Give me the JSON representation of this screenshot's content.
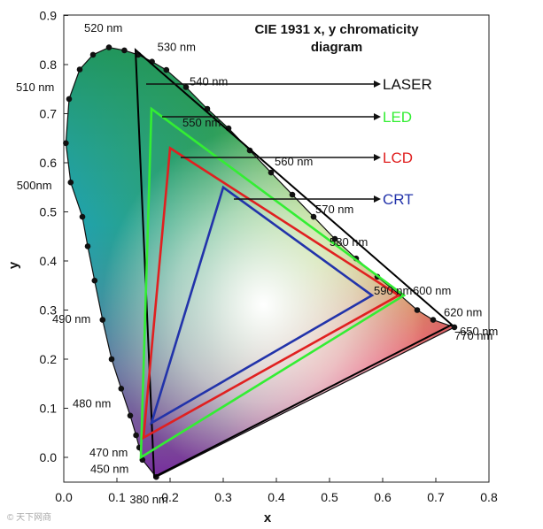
{
  "chart_data": {
    "type": "scatter",
    "title_line1": "CIE 1931 x, y chromaticity",
    "title_line2": "diagram",
    "xlabel": "x",
    "ylabel": "y",
    "xlim": [
      0.0,
      0.8
    ],
    "ylim": [
      -0.05,
      0.9
    ],
    "x_ticks": [
      "0.0",
      "0.1",
      "0.2",
      "0.3",
      "0.4",
      "0.5",
      "0.6",
      "0.7",
      "0.8"
    ],
    "y_ticks": [
      "0.0",
      "0.1",
      "0.2",
      "0.3",
      "0.4",
      "0.5",
      "0.6",
      "0.7",
      "0.8",
      "0.9"
    ],
    "locus": [
      [
        0.174,
        -0.04
      ],
      [
        0.148,
        -0.005
      ],
      [
        0.142,
        0.02
      ],
      [
        0.136,
        0.045
      ],
      [
        0.125,
        0.085
      ],
      [
        0.108,
        0.14
      ],
      [
        0.09,
        0.2
      ],
      [
        0.073,
        0.28
      ],
      [
        0.058,
        0.36
      ],
      [
        0.045,
        0.43
      ],
      [
        0.035,
        0.49
      ],
      [
        0.013,
        0.56
      ],
      [
        0.004,
        0.64
      ],
      [
        0.01,
        0.73
      ],
      [
        0.03,
        0.79
      ],
      [
        0.055,
        0.82
      ],
      [
        0.085,
        0.835
      ],
      [
        0.114,
        0.829
      ],
      [
        0.14,
        0.82
      ],
      [
        0.166,
        0.806
      ],
      [
        0.193,
        0.789
      ],
      [
        0.23,
        0.754
      ],
      [
        0.27,
        0.71
      ],
      [
        0.31,
        0.67
      ],
      [
        0.35,
        0.625
      ],
      [
        0.39,
        0.58
      ],
      [
        0.43,
        0.535
      ],
      [
        0.47,
        0.49
      ],
      [
        0.51,
        0.445
      ],
      [
        0.55,
        0.405
      ],
      [
        0.59,
        0.368
      ],
      [
        0.63,
        0.333
      ],
      [
        0.665,
        0.3
      ],
      [
        0.695,
        0.28
      ],
      [
        0.735,
        0.265
      ]
    ],
    "gamuts": [
      {
        "name": "LASER",
        "color": "#000000",
        "points": [
          [
            0.135,
            0.83
          ],
          [
            0.73,
            0.27
          ],
          [
            0.17,
            -0.04
          ]
        ]
      },
      {
        "name": "LED",
        "color": "#33ee33",
        "points": [
          [
            0.165,
            0.71
          ],
          [
            0.64,
            0.33
          ],
          [
            0.145,
            0.0
          ]
        ]
      },
      {
        "name": "LCD",
        "color": "#e02020",
        "points": [
          [
            0.2,
            0.63
          ],
          [
            0.63,
            0.33
          ],
          [
            0.15,
            0.04
          ]
        ]
      },
      {
        "name": "CRT",
        "color": "#2233aa",
        "points": [
          [
            0.3,
            0.55
          ],
          [
            0.58,
            0.33
          ],
          [
            0.165,
            0.07
          ]
        ]
      }
    ],
    "wavelength_labels": [
      {
        "text": "520 nm",
        "x": 0.085,
        "y": 0.838
      },
      {
        "text": "530 nm",
        "x": 0.166,
        "y": 0.806
      },
      {
        "text": "540 nm",
        "x": 0.23,
        "y": 0.754
      },
      {
        "text": "550 nm",
        "x": 0.31,
        "y": 0.67
      },
      {
        "text": "560 nm",
        "x": 0.39,
        "y": 0.58
      },
      {
        "text": "570 nm",
        "x": 0.47,
        "y": 0.49
      },
      {
        "text": "580 nm",
        "x": 0.51,
        "y": 0.445
      },
      {
        "text": "590 nm",
        "x": 0.59,
        "y": 0.368
      },
      {
        "text": "600 nm",
        "x": 0.63,
        "y": 0.333
      },
      {
        "text": "620 nm",
        "x": 0.695,
        "y": 0.28
      },
      {
        "text": "650 nm",
        "x": 0.725,
        "y": 0.27
      },
      {
        "text": "770 nm",
        "x": 0.735,
        "y": 0.265
      },
      {
        "text": "510 nm",
        "x": 0.01,
        "y": 0.75
      },
      {
        "text": "500nm",
        "x": 0.008,
        "y": 0.55
      },
      {
        "text": "490 nm",
        "x": 0.045,
        "y": 0.285
      },
      {
        "text": "480 nm",
        "x": 0.09,
        "y": 0.12
      },
      {
        "text": "470 nm",
        "x": 0.125,
        "y": 0.02
      },
      {
        "text": "450 nm",
        "x": 0.14,
        "y": -0.01
      },
      {
        "text": "380 nm",
        "x": 0.174,
        "y": -0.04
      }
    ],
    "grid": false,
    "legend_position": "right, arrows from gamut apices"
  },
  "watermark": "© 天下网商"
}
